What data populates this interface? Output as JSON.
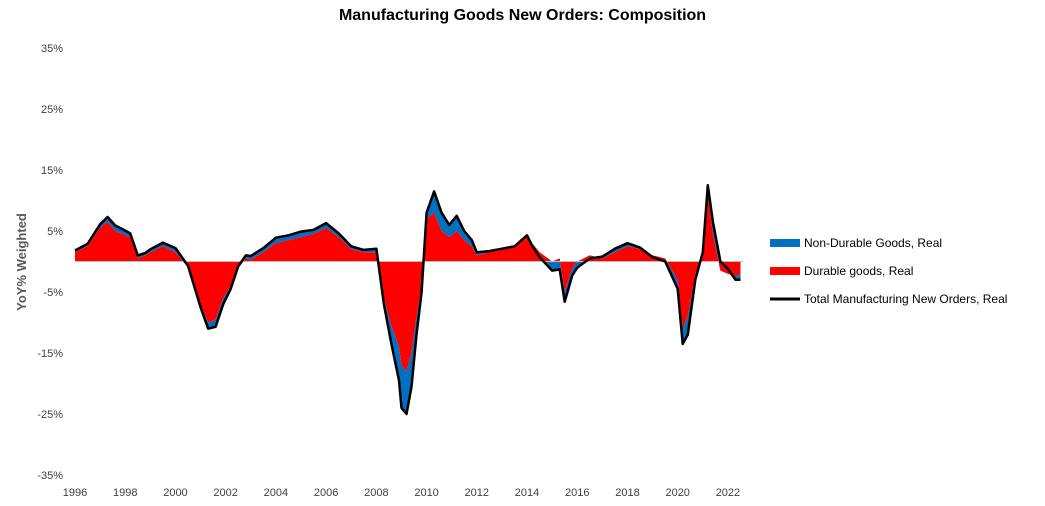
{
  "chart_data": {
    "type": "area",
    "title": "Manufacturing Goods New Orders: Composition",
    "xlabel": "",
    "ylabel": "YoY% Weighted",
    "xlim": [
      1996,
      2022.6
    ],
    "ylim": [
      -35,
      35
    ],
    "y_unit": "%",
    "y_ticks": [
      "35%",
      "25%",
      "15%",
      "5%",
      "-5%",
      "-15%",
      "-25%",
      "-35%"
    ],
    "x_ticks": [
      "1996",
      "1998",
      "2000",
      "2002",
      "2004",
      "2006",
      "2008",
      "2010",
      "2012",
      "2014",
      "2016",
      "2018",
      "2020",
      "2022"
    ],
    "grid": false,
    "legend_position": "right",
    "x": [
      1996.0,
      1996.5,
      1997.0,
      1997.3,
      1997.6,
      1997.9,
      1998.2,
      1998.5,
      1998.8,
      1999.0,
      1999.5,
      2000.0,
      2000.5,
      2001.0,
      2001.3,
      2001.6,
      2001.9,
      2002.2,
      2002.5,
      2002.8,
      2003.0,
      2003.5,
      2004.0,
      2004.5,
      2005.0,
      2005.5,
      2006.0,
      2006.5,
      2007.0,
      2007.5,
      2008.0,
      2008.3,
      2008.6,
      2008.9,
      2009.0,
      2009.2,
      2009.4,
      2009.6,
      2009.8,
      2010.0,
      2010.3,
      2010.6,
      2010.9,
      2011.2,
      2011.5,
      2011.8,
      2012.0,
      2012.5,
      2013.0,
      2013.5,
      2014.0,
      2014.2,
      2014.5,
      2015.0,
      2015.3,
      2015.5,
      2015.8,
      2016.0,
      2016.5,
      2017.0,
      2017.5,
      2018.0,
      2018.5,
      2019.0,
      2019.5,
      2020.0,
      2020.2,
      2020.4,
      2020.7,
      2021.0,
      2021.2,
      2021.4,
      2021.7,
      2022.0,
      2022.3,
      2022.5
    ],
    "series": [
      {
        "name": "Non-Durable Goods, Real",
        "color": "#0070c0",
        "kind": "stacked-area",
        "values": [
          0.3,
          0.4,
          0.6,
          0.8,
          0.9,
          0.8,
          0.6,
          0.5,
          0.4,
          0.5,
          0.6,
          0.7,
          0.3,
          -0.5,
          -1.0,
          -1.2,
          -1.0,
          -0.5,
          0.2,
          0.5,
          0.6,
          0.7,
          0.9,
          0.8,
          0.9,
          0.7,
          0.8,
          0.6,
          0.5,
          0.4,
          0.6,
          -1.0,
          -3.0,
          -5.5,
          -7.0,
          -7.0,
          -5.5,
          -3.0,
          -1.0,
          1.0,
          3.5,
          3.0,
          2.0,
          2.5,
          1.5,
          1.0,
          0.5,
          0.2,
          0.1,
          0.0,
          -0.2,
          -0.4,
          -0.8,
          -1.5,
          -1.8,
          -1.6,
          -1.3,
          -1.0,
          -0.5,
          0.3,
          0.6,
          0.5,
          0.3,
          -0.3,
          -0.5,
          -1.5,
          -2.5,
          -3.0,
          -1.0,
          0.5,
          1.5,
          2.0,
          1.5,
          0.8,
          -0.5,
          -1.0
        ]
      },
      {
        "name": "Durable goods, Real",
        "color": "#ff0000",
        "kind": "stacked-area",
        "values": [
          1.5,
          2.5,
          5.5,
          6.5,
          5.0,
          4.5,
          4.0,
          0.5,
          1.0,
          1.5,
          2.5,
          1.5,
          -1.0,
          -7.0,
          -10.0,
          -9.5,
          -6.0,
          -4.0,
          -1.0,
          0.5,
          0.3,
          1.5,
          3.0,
          3.5,
          4.0,
          4.5,
          5.5,
          4.0,
          2.0,
          1.5,
          1.5,
          -6.0,
          -10.5,
          -14.0,
          -17.0,
          -18.0,
          -15.0,
          -9.0,
          -4.0,
          7.0,
          8.0,
          5.0,
          4.0,
          5.0,
          3.5,
          2.5,
          1.0,
          1.5,
          2.0,
          2.5,
          4.5,
          3.0,
          1.5,
          0.0,
          0.5,
          -5.0,
          -1.0,
          0.0,
          1.0,
          0.5,
          1.5,
          2.5,
          2.0,
          1.0,
          0.5,
          -3.0,
          -11.0,
          -9.0,
          -2.0,
          1.0,
          11.0,
          4.5,
          -1.5,
          -2.0,
          -2.5,
          -2.0
        ]
      },
      {
        "name": "Total Manufacturing New Orders, Real",
        "color": "#000000",
        "kind": "line",
        "values": [
          1.8,
          2.9,
          6.1,
          7.3,
          5.9,
          5.3,
          4.6,
          1.0,
          1.4,
          2.0,
          3.1,
          2.2,
          -0.7,
          -7.5,
          -11.0,
          -10.7,
          -7.0,
          -4.5,
          -0.8,
          1.0,
          0.9,
          2.2,
          3.9,
          4.3,
          4.9,
          5.2,
          6.3,
          4.6,
          2.5,
          1.9,
          2.1,
          -7.0,
          -13.5,
          -19.5,
          -24.0,
          -25.0,
          -20.5,
          -12.0,
          -5.0,
          8.0,
          11.5,
          8.0,
          6.0,
          7.5,
          5.0,
          3.5,
          1.5,
          1.7,
          2.1,
          2.5,
          4.3,
          2.6,
          0.7,
          -1.5,
          -1.3,
          -6.6,
          -2.3,
          -1.0,
          0.5,
          0.8,
          2.1,
          3.0,
          2.3,
          0.7,
          0.0,
          -4.5,
          -13.5,
          -12.0,
          -3.0,
          1.5,
          12.5,
          6.5,
          0.0,
          -1.2,
          -3.0,
          -3.0
        ]
      }
    ]
  }
}
